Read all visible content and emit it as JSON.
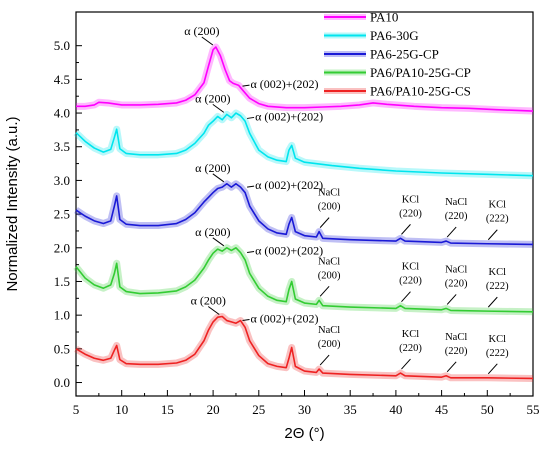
{
  "chart_data": {
    "type": "line",
    "xlabel": "2Θ (°)",
    "ylabel": "Normalized Intensity (a.u.)",
    "xlim": [
      5,
      55
    ],
    "ylim": [
      -0.2,
      5.5
    ],
    "xticks": [
      5,
      10,
      15,
      20,
      25,
      30,
      35,
      40,
      45,
      50,
      55
    ],
    "yticks": [
      0.0,
      0.5,
      1.0,
      1.5,
      2.0,
      2.5,
      3.0,
      3.5,
      4.0,
      4.5,
      5.0
    ],
    "ytick_labels": [
      "0.0",
      "0.5",
      "1.0",
      "1.5",
      "2.0",
      "2.5",
      "3.0",
      "3.5",
      "4.0",
      "4.5",
      "5.0"
    ],
    "legend_position": "top-right",
    "series": [
      {
        "name": "PA10",
        "color": "#ff00ff",
        "x": [
          5,
          6,
          7,
          7.5,
          8.5,
          10,
          12,
          14,
          16,
          17,
          18,
          19,
          19.5,
          20,
          20.3,
          20.8,
          21.3,
          21.8,
          22.2,
          22.8,
          23.3,
          24,
          25,
          26,
          28,
          30,
          32,
          34,
          36,
          37.5,
          39,
          42,
          45,
          48,
          51,
          55
        ],
        "y": [
          4.1,
          4.1,
          4.12,
          4.16,
          4.15,
          4.12,
          4.12,
          4.13,
          4.15,
          4.19,
          4.27,
          4.45,
          4.7,
          4.94,
          4.98,
          4.85,
          4.65,
          4.48,
          4.44,
          4.41,
          4.33,
          4.22,
          4.14,
          4.1,
          4.08,
          4.08,
          4.09,
          4.1,
          4.12,
          4.15,
          4.13,
          4.1,
          4.08,
          4.07,
          4.05,
          4.03
        ]
      },
      {
        "name": "PA6-30G",
        "color": "#00e5ee",
        "x": [
          5,
          6,
          7,
          8,
          8.8,
          9.2,
          9.45,
          9.8,
          10.5,
          12,
          14,
          16,
          17,
          18,
          19,
          19.5,
          20,
          20.5,
          21,
          21.5,
          22,
          22.5,
          23,
          23.5,
          24,
          25,
          26,
          27,
          28,
          28.3,
          28.6,
          29,
          30,
          33,
          36,
          40,
          45,
          50,
          55
        ],
        "y": [
          3.71,
          3.58,
          3.48,
          3.42,
          3.46,
          3.64,
          3.76,
          3.47,
          3.4,
          3.38,
          3.38,
          3.4,
          3.45,
          3.55,
          3.7,
          3.82,
          3.88,
          3.95,
          3.9,
          3.98,
          3.93,
          4.0,
          3.96,
          3.88,
          3.7,
          3.45,
          3.35,
          3.3,
          3.28,
          3.45,
          3.52,
          3.33,
          3.27,
          3.22,
          3.18,
          3.14,
          3.11,
          3.09,
          3.07
        ]
      },
      {
        "name": "PA6-25G-CP",
        "color": "#1a1ad6",
        "x": [
          5,
          6,
          7,
          8,
          8.8,
          9.2,
          9.45,
          9.8,
          10.5,
          12,
          14,
          16,
          17,
          18,
          19,
          19.5,
          20,
          20.5,
          21,
          21.5,
          22,
          22.5,
          23,
          23.5,
          24,
          25,
          26,
          27,
          28,
          28.3,
          28.6,
          29,
          30,
          31.3,
          31.6,
          32,
          35,
          40,
          40.5,
          41,
          45,
          45.5,
          46,
          50,
          55
        ],
        "y": [
          2.56,
          2.47,
          2.4,
          2.36,
          2.4,
          2.62,
          2.77,
          2.42,
          2.35,
          2.33,
          2.33,
          2.36,
          2.42,
          2.52,
          2.68,
          2.75,
          2.82,
          2.88,
          2.9,
          2.95,
          2.9,
          2.95,
          2.9,
          2.82,
          2.62,
          2.4,
          2.28,
          2.22,
          2.2,
          2.35,
          2.45,
          2.24,
          2.18,
          2.16,
          2.24,
          2.14,
          2.12,
          2.1,
          2.14,
          2.1,
          2.08,
          2.1,
          2.07,
          2.06,
          2.05
        ]
      },
      {
        "name": "PA6/PA10-25G-CP",
        "color": "#33cc33",
        "x": [
          5,
          6,
          7,
          8,
          8.8,
          9.2,
          9.45,
          9.8,
          10.5,
          12,
          14,
          16,
          17,
          18,
          19,
          19.5,
          20,
          20.5,
          21,
          21.5,
          22,
          22.5,
          23,
          23.5,
          24,
          25,
          26,
          27,
          28,
          28.3,
          28.6,
          29,
          30,
          31.3,
          31.6,
          32,
          35,
          40,
          40.5,
          41,
          45,
          45.5,
          46,
          50,
          55
        ],
        "y": [
          1.72,
          1.55,
          1.45,
          1.4,
          1.45,
          1.62,
          1.77,
          1.42,
          1.35,
          1.32,
          1.33,
          1.36,
          1.42,
          1.52,
          1.7,
          1.82,
          1.92,
          1.98,
          1.95,
          2.0,
          1.96,
          2.0,
          1.93,
          1.82,
          1.62,
          1.4,
          1.28,
          1.22,
          1.2,
          1.38,
          1.5,
          1.24,
          1.18,
          1.16,
          1.22,
          1.14,
          1.12,
          1.1,
          1.14,
          1.1,
          1.08,
          1.1,
          1.07,
          1.06,
          1.05
        ]
      },
      {
        "name": "PA6/PA10-25G-CS",
        "color": "#ee2222",
        "x": [
          5,
          6,
          7,
          8,
          8.8,
          9.2,
          9.45,
          9.8,
          10.5,
          12,
          14,
          16,
          17,
          18,
          19,
          19.5,
          20,
          20.5,
          21,
          21.5,
          22,
          22.5,
          23,
          23.5,
          24,
          25,
          26,
          27,
          28,
          28.3,
          28.6,
          29,
          30,
          31.3,
          31.6,
          32,
          35,
          40,
          40.5,
          41,
          45,
          45.5,
          46,
          50,
          55
        ],
        "y": [
          0.5,
          0.42,
          0.36,
          0.33,
          0.36,
          0.48,
          0.55,
          0.34,
          0.28,
          0.27,
          0.27,
          0.29,
          0.33,
          0.42,
          0.62,
          0.78,
          0.9,
          0.97,
          0.98,
          0.92,
          0.9,
          0.88,
          0.92,
          0.82,
          0.62,
          0.4,
          0.28,
          0.24,
          0.22,
          0.36,
          0.52,
          0.24,
          0.17,
          0.15,
          0.2,
          0.14,
          0.12,
          0.1,
          0.14,
          0.1,
          0.08,
          0.1,
          0.07,
          0.07,
          0.06
        ]
      }
    ],
    "annotations": [
      {
        "text": "α (200)",
        "x": 20.3,
        "y": 4.98
      },
      {
        "text": "α (002)+(202)",
        "x": 23.0,
        "y": 4.4
      },
      {
        "text": "α (200)",
        "x": 21.5,
        "y": 3.98
      },
      {
        "text": "α (002)+(202)",
        "x": 23.5,
        "y": 3.92
      },
      {
        "text": "α (200)",
        "x": 21.5,
        "y": 2.95
      },
      {
        "text": "α (002)+(202)",
        "x": 23.5,
        "y": 2.9
      },
      {
        "text": "α (200)",
        "x": 21.5,
        "y": 2.0
      },
      {
        "text": "α (002)+(202)",
        "x": 23.5,
        "y": 1.93
      },
      {
        "text": "α (200)",
        "x": 21.0,
        "y": 0.98
      },
      {
        "text": "α (002)+(202)",
        "x": 23.0,
        "y": 0.92
      },
      {
        "text": "NaCl (200)",
        "x": 31.6,
        "y": 2.24
      },
      {
        "text": "KCl (220)",
        "x": 40.5,
        "y": 2.14
      },
      {
        "text": "NaCl (220)",
        "x": 45.5,
        "y": 2.1
      },
      {
        "text": "KCl (222)",
        "x": 50.0,
        "y": 2.06
      },
      {
        "text": "NaCl (200)",
        "x": 31.6,
        "y": 1.22
      },
      {
        "text": "KCl (220)",
        "x": 40.5,
        "y": 1.14
      },
      {
        "text": "NaCl (220)",
        "x": 45.5,
        "y": 1.1
      },
      {
        "text": "KCl (222)",
        "x": 50.0,
        "y": 1.06
      },
      {
        "text": "NaCl (200)",
        "x": 31.6,
        "y": 0.2
      },
      {
        "text": "KCl (220)",
        "x": 40.5,
        "y": 0.14
      },
      {
        "text": "NaCl (220)",
        "x": 45.5,
        "y": 0.1
      },
      {
        "text": "KCl (222)",
        "x": 50.0,
        "y": 0.07
      }
    ],
    "grid": false
  }
}
